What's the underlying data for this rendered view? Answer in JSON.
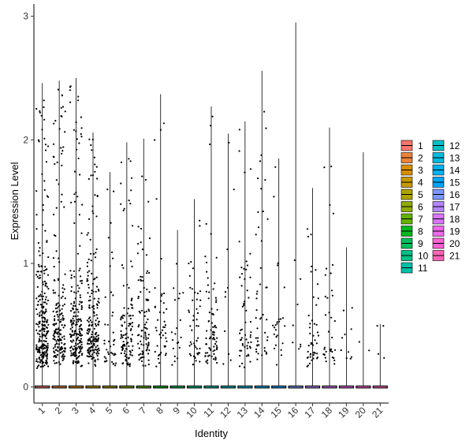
{
  "chart_data": {
    "type": "violin",
    "title": "",
    "xlabel": "Identity",
    "ylabel": "Expression Level",
    "ylim": [
      -0.13,
      3.1
    ],
    "yticks": [
      0,
      1,
      2,
      3
    ],
    "grid": false,
    "legend_position": "right",
    "categories": [
      "1",
      "2",
      "3",
      "4",
      "5",
      "6",
      "7",
      "8",
      "9",
      "10",
      "11",
      "12",
      "13",
      "14",
      "15",
      "16",
      "17",
      "18",
      "19",
      "20",
      "21"
    ],
    "series": [
      {
        "name": "1",
        "color": "#F8766D",
        "max": 2.46,
        "n": 260
      },
      {
        "name": "2",
        "color": "#EC8239",
        "max": 2.48,
        "n": 180
      },
      {
        "name": "3",
        "color": "#DB8E00",
        "max": 2.5,
        "n": 200
      },
      {
        "name": "4",
        "color": "#C79800",
        "max": 2.06,
        "n": 190
      },
      {
        "name": "5",
        "color": "#AEA200",
        "max": 1.74,
        "n": 40
      },
      {
        "name": "6",
        "color": "#8FAA00",
        "max": 1.98,
        "n": 110
      },
      {
        "name": "7",
        "color": "#64B200",
        "max": 2.01,
        "n": 90
      },
      {
        "name": "8",
        "color": "#00B81B",
        "max": 2.37,
        "n": 45
      },
      {
        "name": "9",
        "color": "#00BD5C",
        "max": 1.27,
        "n": 20
      },
      {
        "name": "10",
        "color": "#00C085",
        "max": 1.52,
        "n": 50
      },
      {
        "name": "11",
        "color": "#00C1A7",
        "max": 2.27,
        "n": 80
      },
      {
        "name": "12",
        "color": "#00BFC4",
        "max": 2.05,
        "n": 10
      },
      {
        "name": "13",
        "color": "#00BADE",
        "max": 2.15,
        "n": 55
      },
      {
        "name": "14",
        "color": "#00B2F3",
        "max": 2.56,
        "n": 45
      },
      {
        "name": "15",
        "color": "#00A6FF",
        "max": 1.85,
        "n": 25
      },
      {
        "name": "16",
        "color": "#7C96FF",
        "max": 2.95,
        "n": 8
      },
      {
        "name": "17",
        "color": "#B385FF",
        "max": 1.61,
        "n": 45
      },
      {
        "name": "18",
        "color": "#D874FD",
        "max": 2.1,
        "n": 35
      },
      {
        "name": "19",
        "color": "#EF67EB",
        "max": 1.13,
        "n": 10
      },
      {
        "name": "20",
        "color": "#FD61D3",
        "max": 1.9,
        "n": 2
      },
      {
        "name": "21",
        "color": "#FF63B6",
        "max": 0.51,
        "n": 4
      }
    ]
  }
}
